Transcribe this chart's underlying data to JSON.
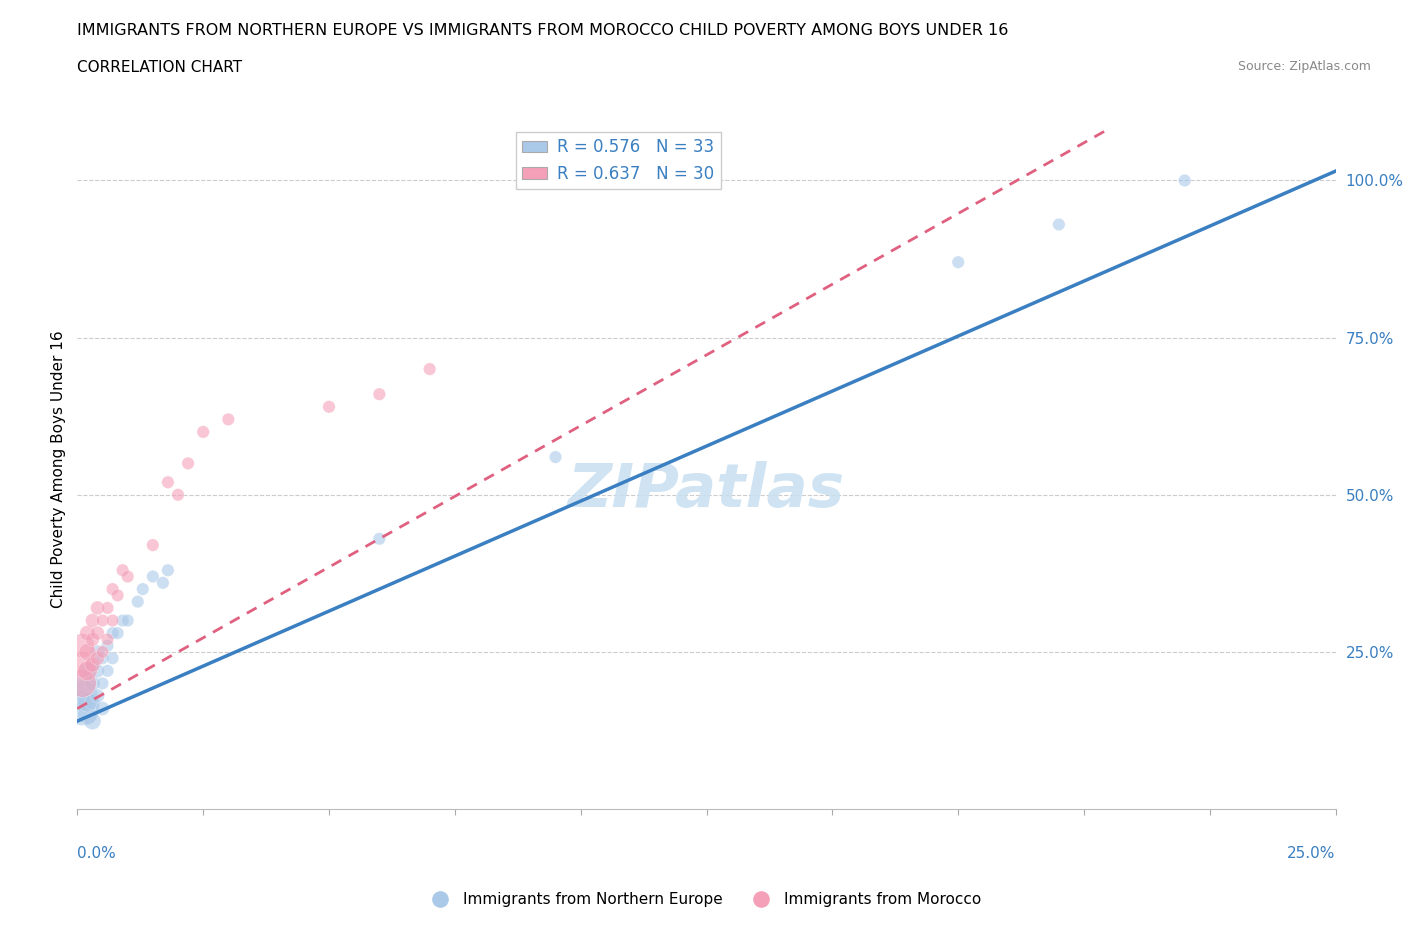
{
  "title": "IMMIGRANTS FROM NORTHERN EUROPE VS IMMIGRANTS FROM MOROCCO CHILD POVERTY AMONG BOYS UNDER 16",
  "subtitle": "CORRELATION CHART",
  "source": "Source: ZipAtlas.com",
  "ylabel": "Child Poverty Among Boys Under 16",
  "r_blue": 0.576,
  "n_blue": 33,
  "r_pink": 0.637,
  "n_pink": 30,
  "blue_color": "#aac8e8",
  "pink_color": "#f4a0b8",
  "blue_line_color": "#3a7fc1",
  "pink_line_color": "#e06080",
  "watermark_color": "#c8dff0",
  "blue_line_intercept": 0.14,
  "blue_line_slope": 3.5,
  "pink_line_intercept": 0.16,
  "pink_line_slope": 4.5,
  "blue_scatter_x": [
    0.001,
    0.001,
    0.001,
    0.002,
    0.002,
    0.002,
    0.003,
    0.003,
    0.003,
    0.003,
    0.004,
    0.004,
    0.004,
    0.005,
    0.005,
    0.005,
    0.006,
    0.006,
    0.007,
    0.007,
    0.008,
    0.009,
    0.01,
    0.012,
    0.013,
    0.015,
    0.017,
    0.018,
    0.06,
    0.095,
    0.175,
    0.195,
    0.22
  ],
  "blue_scatter_y": [
    0.16,
    0.18,
    0.2,
    0.15,
    0.17,
    0.22,
    0.14,
    0.17,
    0.2,
    0.23,
    0.18,
    0.22,
    0.25,
    0.16,
    0.2,
    0.24,
    0.22,
    0.26,
    0.24,
    0.28,
    0.28,
    0.3,
    0.3,
    0.33,
    0.35,
    0.37,
    0.36,
    0.38,
    0.43,
    0.56,
    0.87,
    0.93,
    1.0
  ],
  "blue_scatter_sizes": [
    600,
    500,
    400,
    200,
    200,
    150,
    150,
    120,
    120,
    100,
    100,
    100,
    100,
    100,
    80,
    80,
    80,
    80,
    80,
    80,
    80,
    80,
    80,
    80,
    80,
    80,
    80,
    80,
    80,
    80,
    80,
    80,
    80
  ],
  "pink_scatter_x": [
    0.001,
    0.001,
    0.001,
    0.002,
    0.002,
    0.002,
    0.003,
    0.003,
    0.003,
    0.004,
    0.004,
    0.004,
    0.005,
    0.005,
    0.006,
    0.006,
    0.007,
    0.007,
    0.008,
    0.009,
    0.01,
    0.015,
    0.018,
    0.02,
    0.022,
    0.025,
    0.03,
    0.05,
    0.06,
    0.07
  ],
  "pink_scatter_y": [
    0.2,
    0.23,
    0.26,
    0.22,
    0.25,
    0.28,
    0.23,
    0.27,
    0.3,
    0.24,
    0.28,
    0.32,
    0.25,
    0.3,
    0.27,
    0.32,
    0.3,
    0.35,
    0.34,
    0.38,
    0.37,
    0.42,
    0.52,
    0.5,
    0.55,
    0.6,
    0.62,
    0.64,
    0.66,
    0.7
  ],
  "pink_scatter_sizes": [
    400,
    350,
    300,
    200,
    150,
    120,
    120,
    100,
    100,
    100,
    100,
    100,
    80,
    80,
    80,
    80,
    80,
    80,
    80,
    80,
    80,
    80,
    80,
    80,
    80,
    80,
    80,
    80,
    80,
    80
  ],
  "xlim": [
    0.0,
    0.25
  ],
  "ylim": [
    0.0,
    1.08
  ],
  "yticks": [
    0.0,
    0.25,
    0.5,
    0.75,
    1.0
  ],
  "ytick_labels": [
    "",
    "25.0%",
    "50.0%",
    "75.0%",
    "100.0%"
  ]
}
